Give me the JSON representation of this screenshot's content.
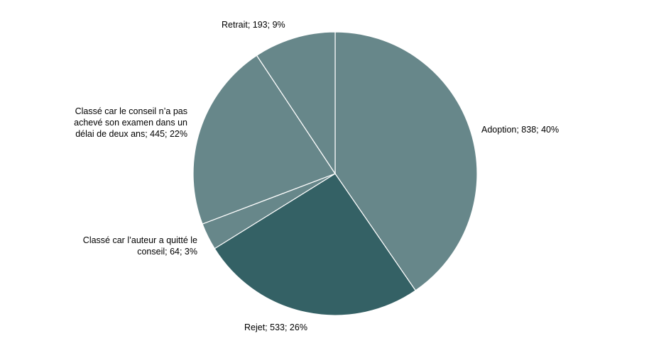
{
  "chart_data": {
    "type": "pie",
    "title": "",
    "slices": [
      {
        "name": "Adoption",
        "value": 838,
        "percent": 40,
        "color": "#67878a",
        "label_lines": [
          "Adoption; 838; 40%"
        ]
      },
      {
        "name": "Rejet",
        "value": 533,
        "percent": 26,
        "color": "#346165",
        "label_lines": [
          "Rejet; 533; 26%"
        ]
      },
      {
        "name": "Classé car l’auteur a quitté le conseil",
        "value": 64,
        "percent": 3,
        "color": "#67878a",
        "label_lines": [
          "Classé car l’auteur a quitté le",
          "conseil; 64; 3%"
        ]
      },
      {
        "name": "Classé car le conseil n’a pas achevé son examen dans un délai de deux ans",
        "value": 445,
        "percent": 22,
        "color": "#67878a",
        "label_lines": [
          "Classé car le conseil n’a pas",
          "achevé son examen dans un",
          "délai de deux ans; 445; 22%"
        ]
      },
      {
        "name": "Retrait",
        "value": 193,
        "percent": 9,
        "color": "#67878a",
        "label_lines": [
          "Retrait; 193; 9%"
        ]
      }
    ],
    "legend": "none",
    "start": "top",
    "direction": "clockwise"
  }
}
